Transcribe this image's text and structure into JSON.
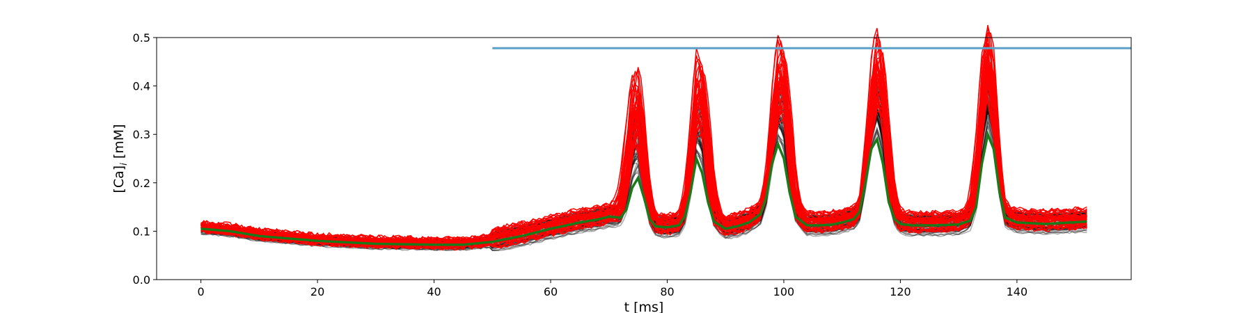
{
  "chart_data": {
    "type": "line",
    "title": "",
    "xlabel": "t [ms]",
    "ylabel": "[Ca]",
    "ylabel_subscript": "i",
    "ylabel_unit": " [mM]",
    "xlim": [
      -7.6,
      159.6
    ],
    "ylim": [
      0.0,
      0.5
    ],
    "xticks": [
      0,
      20,
      40,
      60,
      80,
      100,
      120,
      140
    ],
    "yticks": [
      0.0,
      0.1,
      0.2,
      0.3,
      0.4,
      0.5
    ],
    "ytick_labels": [
      "0.0",
      "0.1",
      "0.2",
      "0.3",
      "0.4",
      "0.5"
    ],
    "grid": false,
    "colors": {
      "ensemble_black": "#000000",
      "ensemble_red": "#ff0000",
      "mean": "#1a7a1a",
      "threshold": "#5aa0c8"
    },
    "threshold_line": {
      "x": [
        50,
        159.6
      ],
      "y": 0.478
    },
    "mean_series": {
      "x": [
        0,
        5,
        10,
        20,
        30,
        40,
        45,
        50,
        55,
        60,
        65,
        68,
        70,
        72,
        73,
        74,
        75,
        76,
        77,
        78,
        80,
        82,
        83,
        84,
        85,
        86,
        87,
        88,
        90,
        92,
        94,
        96,
        97,
        98,
        99,
        100,
        101,
        102,
        104,
        106,
        108,
        110,
        112,
        113,
        114,
        115,
        116,
        117,
        118,
        119,
        120,
        122,
        126,
        130,
        132,
        133,
        134,
        135,
        136,
        137,
        138,
        140,
        145,
        152
      ],
      "y": [
        0.105,
        0.1,
        0.09,
        0.08,
        0.074,
        0.072,
        0.072,
        0.078,
        0.09,
        0.105,
        0.118,
        0.124,
        0.13,
        0.128,
        0.145,
        0.19,
        0.21,
        0.17,
        0.125,
        0.11,
        0.108,
        0.112,
        0.13,
        0.18,
        0.25,
        0.22,
        0.16,
        0.12,
        0.105,
        0.11,
        0.118,
        0.135,
        0.17,
        0.24,
        0.28,
        0.25,
        0.18,
        0.13,
        0.112,
        0.112,
        0.113,
        0.118,
        0.125,
        0.14,
        0.2,
        0.27,
        0.29,
        0.24,
        0.16,
        0.125,
        0.115,
        0.112,
        0.112,
        0.114,
        0.122,
        0.15,
        0.24,
        0.3,
        0.27,
        0.18,
        0.128,
        0.118,
        0.115,
        0.12
      ]
    }
  }
}
